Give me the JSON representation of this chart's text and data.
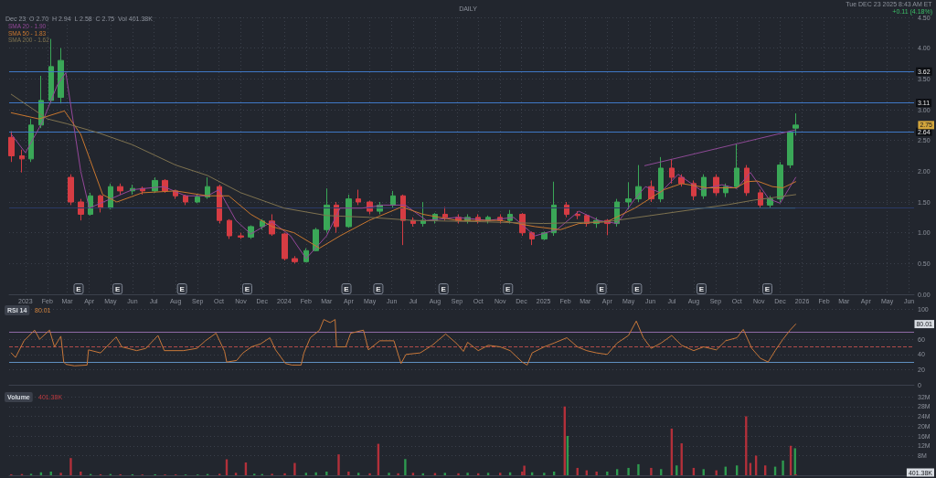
{
  "chart_data": [
    {
      "type": "candlestick",
      "title": "DAILY",
      "annotations": [
        "Dec 23  O 2.70  H 2.94  L 2.58  C 2.75  Vol 401.38K",
        "Tue DEC 23 2025 8:43 AM ET",
        "+0.11 (4.18%)",
        "2.75",
        {
          "text": "E",
          "x": "2023-03-17"
        },
        {
          "text": "E",
          "x": "2023-05-11"
        },
        {
          "text": "E",
          "x": "2023-08-10"
        },
        {
          "text": "E",
          "x": "2023-11-10"
        },
        {
          "text": "E",
          "x": "2024-03-29"
        },
        {
          "text": "E",
          "x": "2024-05-13"
        },
        {
          "text": "E",
          "x": "2024-08-13"
        },
        {
          "text": "E",
          "x": "2024-11-12"
        },
        {
          "text": "E",
          "x": "2025-03-24"
        },
        {
          "text": "E",
          "x": "2025-05-13"
        },
        {
          "text": "E",
          "x": "2025-08-12"
        },
        {
          "text": "E",
          "x": "2025-11-13"
        }
      ],
      "x": [
        "2022-12-12",
        "2022-12-27",
        "2023-01-09",
        "2023-01-23",
        "2023-02-06",
        "2023-02-20",
        "2023-03-06",
        "2023-03-20",
        "2023-04-03",
        "2023-04-17",
        "2023-05-01",
        "2023-05-15",
        "2023-06-01",
        "2023-06-15",
        "2023-07-03",
        "2023-07-17",
        "2023-08-01",
        "2023-08-15",
        "2023-09-01",
        "2023-09-15",
        "2023-10-02",
        "2023-10-16",
        "2023-11-01",
        "2023-11-15",
        "2023-12-01",
        "2023-12-15",
        "2024-01-02",
        "2024-01-16",
        "2024-02-01",
        "2024-02-15",
        "2024-03-01",
        "2024-03-15",
        "2024-04-01",
        "2024-04-15",
        "2024-05-01",
        "2024-05-15",
        "2024-06-03",
        "2024-06-17",
        "2024-07-01",
        "2024-07-15",
        "2024-08-01",
        "2024-08-15",
        "2024-09-03",
        "2024-09-16",
        "2024-10-01",
        "2024-10-15",
        "2024-11-01",
        "2024-11-15",
        "2024-12-02",
        "2024-12-16",
        "2025-01-02",
        "2025-01-16",
        "2025-02-03",
        "2025-02-18",
        "2025-03-03",
        "2025-03-17",
        "2025-04-01",
        "2025-04-15",
        "2025-05-01",
        "2025-05-15",
        "2025-06-02",
        "2025-06-16",
        "2025-07-01",
        "2025-07-15",
        "2025-08-01",
        "2025-08-15",
        "2025-09-02",
        "2025-09-15",
        "2025-10-01",
        "2025-10-15",
        "2025-11-03",
        "2025-11-17",
        "2025-12-01",
        "2025-12-15",
        "2025-12-23"
      ],
      "ohlc": [
        [
          2.55,
          2.65,
          2.15,
          2.25
        ],
        [
          2.25,
          2.35,
          1.98,
          2.2
        ],
        [
          2.2,
          2.85,
          2.15,
          2.75
        ],
        [
          2.75,
          3.55,
          2.7,
          3.15
        ],
        [
          3.15,
          4.15,
          3.1,
          3.7
        ],
        [
          3.2,
          4.0,
          3.1,
          3.8
        ],
        [
          1.9,
          1.95,
          1.45,
          1.5
        ],
        [
          1.5,
          1.55,
          1.2,
          1.3
        ],
        [
          1.3,
          1.65,
          1.28,
          1.6
        ],
        [
          1.6,
          1.62,
          1.33,
          1.4
        ],
        [
          1.4,
          1.8,
          1.38,
          1.75
        ],
        [
          1.75,
          1.8,
          1.62,
          1.68
        ],
        [
          1.68,
          1.78,
          1.62,
          1.72
        ],
        [
          1.72,
          1.75,
          1.62,
          1.68
        ],
        [
          1.68,
          1.9,
          1.65,
          1.85
        ],
        [
          1.85,
          1.87,
          1.65,
          1.68
        ],
        [
          1.68,
          1.7,
          1.55,
          1.6
        ],
        [
          1.6,
          1.62,
          1.45,
          1.5
        ],
        [
          1.5,
          1.62,
          1.48,
          1.58
        ],
        [
          1.58,
          1.9,
          1.55,
          1.75
        ],
        [
          1.75,
          1.78,
          1.15,
          1.2
        ],
        [
          1.2,
          1.22,
          0.9,
          0.95
        ],
        [
          0.95,
          1.0,
          0.9,
          0.93
        ],
        [
          0.93,
          1.12,
          0.9,
          1.1
        ],
        [
          1.1,
          1.22,
          1.05,
          1.19
        ],
        [
          1.19,
          1.3,
          0.95,
          0.98
        ],
        [
          0.98,
          1.0,
          0.55,
          0.58
        ],
        [
          0.58,
          0.62,
          0.5,
          0.53
        ],
        [
          0.53,
          0.75,
          0.52,
          0.71
        ],
        [
          0.71,
          1.08,
          0.7,
          1.05
        ],
        [
          1.05,
          1.72,
          1.0,
          1.45
        ],
        [
          1.45,
          1.5,
          1.0,
          1.1
        ],
        [
          1.1,
          1.62,
          1.08,
          1.55
        ],
        [
          1.55,
          1.7,
          1.45,
          1.5
        ],
        [
          1.5,
          1.52,
          1.3,
          1.35
        ],
        [
          1.35,
          1.5,
          1.3,
          1.45
        ],
        [
          1.45,
          1.68,
          1.4,
          1.6
        ],
        [
          1.6,
          1.62,
          0.8,
          1.2
        ],
        [
          1.2,
          1.25,
          1.1,
          1.15
        ],
        [
          1.15,
          1.5,
          1.1,
          1.2
        ],
        [
          1.2,
          1.32,
          1.15,
          1.3
        ],
        [
          1.3,
          1.42,
          1.2,
          1.25
        ],
        [
          1.25,
          1.3,
          1.15,
          1.2
        ],
        [
          1.2,
          1.3,
          1.15,
          1.25
        ],
        [
          1.25,
          1.3,
          1.15,
          1.2
        ],
        [
          1.2,
          1.28,
          1.15,
          1.25
        ],
        [
          1.25,
          1.3,
          1.15,
          1.2
        ],
        [
          1.2,
          1.37,
          1.15,
          1.3
        ],
        [
          1.3,
          1.32,
          0.95,
          1.0
        ],
        [
          1.0,
          1.02,
          0.8,
          0.9
        ],
        [
          0.9,
          1.02,
          0.88,
          1.0
        ],
        [
          1.0,
          1.83,
          0.95,
          1.45
        ],
        [
          1.45,
          1.5,
          1.25,
          1.3
        ],
        [
          1.3,
          1.35,
          1.22,
          1.28
        ],
        [
          1.28,
          1.3,
          1.1,
          1.15
        ],
        [
          1.15,
          1.25,
          1.08,
          1.2
        ],
        [
          1.2,
          1.22,
          0.96,
          1.15
        ],
        [
          1.15,
          1.55,
          1.1,
          1.5
        ],
        [
          1.5,
          1.82,
          1.38,
          1.55
        ],
        [
          1.55,
          2.1,
          1.5,
          1.75
        ],
        [
          1.75,
          1.85,
          1.5,
          1.55
        ],
        [
          1.55,
          2.23,
          1.5,
          2.05
        ],
        [
          2.05,
          2.2,
          1.8,
          1.9
        ],
        [
          1.9,
          1.95,
          1.75,
          1.8
        ],
        [
          1.8,
          1.85,
          1.53,
          1.6
        ],
        [
          1.6,
          1.95,
          1.55,
          1.9
        ],
        [
          1.9,
          1.95,
          1.6,
          1.65
        ],
        [
          1.65,
          1.8,
          1.58,
          1.75
        ],
        [
          1.75,
          2.45,
          1.72,
          2.05
        ],
        [
          2.05,
          2.1,
          1.6,
          1.65
        ],
        [
          1.65,
          1.7,
          1.4,
          1.45
        ],
        [
          1.45,
          1.6,
          1.4,
          1.55
        ],
        [
          1.55,
          2.15,
          1.5,
          2.1
        ],
        [
          2.1,
          2.66,
          2.05,
          2.64
        ],
        [
          2.7,
          2.94,
          2.58,
          2.75
        ]
      ],
      "colors": [
        "#d63c43",
        "#d63c43",
        "#3aa757",
        "#3aa757",
        "#3aa757",
        "#3aa757",
        "#d63c43",
        "#d63c43",
        "#3aa757",
        "#d63c43",
        "#3aa757",
        "#d63c43",
        "#3aa757",
        "#d63c43",
        "#3aa757",
        "#d63c43",
        "#d63c43",
        "#d63c43",
        "#3aa757",
        "#3aa757",
        "#d63c43",
        "#d63c43",
        "#d63c43",
        "#3aa757",
        "#3aa757",
        "#d63c43",
        "#d63c43",
        "#d63c43",
        "#3aa757",
        "#3aa757",
        "#3aa757",
        "#d63c43",
        "#3aa757",
        "#d63c43",
        "#d63c43",
        "#3aa757",
        "#3aa757",
        "#d63c43",
        "#d63c43",
        "#3aa757",
        "#3aa757",
        "#d63c43",
        "#d63c43",
        "#3aa757",
        "#d63c43",
        "#3aa757",
        "#d63c43",
        "#3aa757",
        "#d63c43",
        "#d63c43",
        "#3aa757",
        "#3aa757",
        "#d63c43",
        "#d63c43",
        "#d63c43",
        "#3aa757",
        "#d63c43",
        "#3aa757",
        "#3aa757",
        "#3aa757",
        "#d63c43",
        "#3aa757",
        "#d63c43",
        "#d63c43",
        "#d63c43",
        "#3aa757",
        "#d63c43",
        "#3aa757",
        "#3aa757",
        "#d63c43",
        "#d63c43",
        "#3aa757",
        "#3aa757",
        "#3aa757",
        "#3aa757"
      ],
      "series": [
        {
          "type": "line",
          "name": "SMA 20 - 1.90",
          "color": "#95489a",
          "x": [
            "2022-12-12",
            "2023-01-01",
            "2023-01-25",
            "2023-02-15",
            "2023-02-27",
            "2023-03-20",
            "2023-04-01",
            "2023-05-01",
            "2023-06-01",
            "2023-07-15",
            "2023-08-15",
            "2023-09-15",
            "2023-10-01",
            "2023-10-25",
            "2023-11-15",
            "2023-12-15",
            "2024-01-10",
            "2024-02-01",
            "2024-03-01",
            "2024-03-20",
            "2024-04-20",
            "2024-05-20",
            "2024-06-20",
            "2024-07-20",
            "2024-09-01",
            "2024-10-15",
            "2024-11-20",
            "2024-12-20",
            "2025-01-20",
            "2025-02-20",
            "2025-03-20",
            "2025-04-15",
            "2025-05-10",
            "2025-05-25",
            "2025-06-15",
            "2025-07-10",
            "2025-08-10",
            "2025-09-10",
            "2025-10-01",
            "2025-10-20",
            "2025-11-15",
            "2025-12-01",
            "2025-12-23"
          ],
          "values": [
            2.6,
            2.3,
            2.8,
            3.4,
            3.6,
            2.0,
            1.4,
            1.55,
            1.7,
            1.75,
            1.6,
            1.6,
            1.7,
            1.2,
            0.98,
            1.18,
            0.95,
            0.58,
            0.95,
            1.4,
            1.4,
            1.45,
            1.45,
            1.2,
            1.25,
            1.2,
            1.25,
            0.95,
            1.05,
            1.35,
            1.2,
            1.15,
            1.55,
            1.75,
            1.65,
            1.95,
            1.7,
            1.78,
            1.72,
            1.98,
            1.55,
            1.48,
            1.9
          ]
        },
        {
          "type": "line",
          "name": "SMA 50 - 1.83",
          "color": "#c9772f",
          "x": [
            "2022-12-12",
            "2023-01-20",
            "2023-02-25",
            "2023-03-20",
            "2023-04-02",
            "2023-04-20",
            "2023-05-10",
            "2023-06-15",
            "2023-08-01",
            "2023-09-15",
            "2023-10-15",
            "2023-11-15",
            "2023-12-15",
            "2024-01-15",
            "2024-02-20",
            "2024-03-20",
            "2024-04-30",
            "2024-06-15",
            "2024-07-15",
            "2024-09-01",
            "2024-11-01",
            "2024-12-20",
            "2025-01-25",
            "2025-02-20",
            "2025-04-01",
            "2025-05-10",
            "2025-06-20",
            "2025-07-15",
            "2025-08-20",
            "2025-09-30",
            "2025-10-15",
            "2025-10-30",
            "2025-11-20",
            "2025-12-05",
            "2025-12-23"
          ],
          "values": [
            2.95,
            2.85,
            2.98,
            2.6,
            2.19,
            1.62,
            1.5,
            1.65,
            1.68,
            1.6,
            1.6,
            1.3,
            1.1,
            1.0,
            0.75,
            0.95,
            1.2,
            1.42,
            1.3,
            1.2,
            1.2,
            1.1,
            1.05,
            1.15,
            1.18,
            1.4,
            1.7,
            1.8,
            1.73,
            1.73,
            1.83,
            1.84,
            1.75,
            1.73,
            1.83
          ]
        },
        {
          "type": "line",
          "name": "SMA 200 - 1.62",
          "color": "#7f7350",
          "x": [
            "2022-12-12",
            "2023-02-01",
            "2023-03-01",
            "2023-04-15",
            "2023-06-01",
            "2023-08-01",
            "2023-09-15",
            "2023-11-01",
            "2024-01-01",
            "2024-03-01",
            "2024-05-01",
            "2024-07-01",
            "2024-10-01",
            "2025-01-01",
            "2025-04-01",
            "2025-06-20",
            "2025-09-20",
            "2025-10-25",
            "2025-12-23"
          ],
          "values": [
            3.25,
            2.85,
            2.77,
            2.62,
            2.43,
            2.1,
            1.93,
            1.65,
            1.4,
            1.28,
            1.25,
            1.2,
            1.18,
            1.15,
            1.18,
            1.31,
            1.46,
            1.53,
            1.62
          ]
        },
        {
          "type": "line",
          "color": "#8e4a96",
          "x": [
            "2025-05-24",
            "2025-12-22"
          ],
          "values": [
            2.09,
            2.67
          ]
        },
        {
          "type": "line",
          "color": "#35597d",
          "x": [
            "2025-06-11",
            "2025-12-22"
          ],
          "values": [
            1.4,
            1.4
          ]
        }
      ],
      "ref_lines": [
        {
          "axis": "y",
          "value": 3.62,
          "label": "3.62",
          "color": "#3f78c6"
        },
        {
          "axis": "y",
          "value": 3.11,
          "label": "3.11",
          "color": "#3f78c6"
        },
        {
          "axis": "y",
          "value": 2.64,
          "label": "2.64",
          "color": "#3f78c6"
        },
        {
          "axis": "y",
          "value": 1.4,
          "color": "#2b3a66"
        }
      ],
      "xlim": [
        "2022-12-09",
        "2026-06-08"
      ],
      "xticks": [
        {
          "value": "2023-01-01",
          "label": "2023"
        },
        {
          "value": "2023-02-01",
          "label": "Feb"
        },
        {
          "value": "2023-03-01",
          "label": "Mar"
        },
        {
          "value": "2023-04-01",
          "label": "Apr"
        },
        {
          "value": "2023-05-01",
          "label": "May"
        },
        {
          "value": "2023-06-01",
          "label": "Jun"
        },
        {
          "value": "2023-07-01",
          "label": "Jul"
        },
        {
          "value": "2023-08-01",
          "label": "Aug"
        },
        {
          "value": "2023-09-01",
          "label": "Sep"
        },
        {
          "value": "2023-10-01",
          "label": "Oct"
        },
        {
          "value": "2023-11-01",
          "label": "Nov"
        },
        {
          "value": "2023-12-01",
          "label": "Dec"
        },
        {
          "value": "2024-01-01",
          "label": "2024"
        },
        {
          "value": "2024-02-01",
          "label": "Feb"
        },
        {
          "value": "2024-03-01",
          "label": "Mar"
        },
        {
          "value": "2024-04-01",
          "label": "Apr"
        },
        {
          "value": "2024-05-01",
          "label": "May"
        },
        {
          "value": "2024-06-01",
          "label": "Jun"
        },
        {
          "value": "2024-07-01",
          "label": "Jul"
        },
        {
          "value": "2024-08-01",
          "label": "Aug"
        },
        {
          "value": "2024-09-01",
          "label": "Sep"
        },
        {
          "value": "2024-10-01",
          "label": "Oct"
        },
        {
          "value": "2024-11-01",
          "label": "Nov"
        },
        {
          "value": "2024-12-01",
          "label": "Dec"
        },
        {
          "value": "2025-01-01",
          "label": "2025"
        },
        {
          "value": "2025-02-01",
          "label": "Feb"
        },
        {
          "value": "2025-03-01",
          "label": "Mar"
        },
        {
          "value": "2025-04-01",
          "label": "Apr"
        },
        {
          "value": "2025-05-01",
          "label": "May"
        },
        {
          "value": "2025-06-01",
          "label": "Jun"
        },
        {
          "value": "2025-07-01",
          "label": "Jul"
        },
        {
          "value": "2025-08-01",
          "label": "Aug"
        },
        {
          "value": "2025-09-01",
          "label": "Sep"
        },
        {
          "value": "2025-10-01",
          "label": "Oct"
        },
        {
          "value": "2025-11-01",
          "label": "Nov"
        },
        {
          "value": "2025-12-01",
          "label": "Dec"
        },
        {
          "value": "2026-01-01",
          "label": "2026"
        },
        {
          "value": "2026-02-01",
          "label": "Feb"
        },
        {
          "value": "2026-03-01",
          "label": "Mar"
        },
        {
          "value": "2026-04-01",
          "label": "Apr"
        },
        {
          "value": "2026-05-01",
          "label": "May"
        },
        {
          "value": "2026-06-01",
          "label": "Jun"
        }
      ],
      "ylim": [
        0,
        4.5
      ],
      "yticks": [
        {
          "value": 0,
          "label": "0.00"
        },
        {
          "value": 0.5,
          "label": "0.50"
        },
        {
          "value": 1,
          "label": "1.00"
        },
        {
          "value": 1.5,
          "label": "1.50"
        },
        {
          "value": 2,
          "label": "2.00"
        },
        {
          "value": 2.5,
          "label": "2.50"
        },
        {
          "value": 3,
          "label": "3.00"
        },
        {
          "value": 3.5,
          "label": "3.50"
        },
        {
          "value": 4,
          "label": "4.00"
        },
        {
          "value": 4.5,
          "label": "4.50"
        }
      ],
      "grid": true,
      "legend": "top left"
    },
    {
      "type": "line",
      "title": "RSI 14",
      "annotations": [
        "80.01",
        "80.01"
      ],
      "x": [
        "2022-12-12",
        "2022-12-18",
        "2022-12-30",
        "2023-01-14",
        "2023-01-21",
        "2023-02-04",
        "2023-02-11",
        "2023-02-20",
        "2023-02-24",
        "2023-02-27",
        "2023-03-11",
        "2023-03-29",
        "2023-03-31",
        "2023-04-17",
        "2023-05-09",
        "2023-05-17",
        "2023-06-07",
        "2023-06-20",
        "2023-07-07",
        "2023-07-16",
        "2023-08-12",
        "2023-08-31",
        "2023-09-12",
        "2023-09-27",
        "2023-10-09",
        "2023-10-12",
        "2023-10-26",
        "2023-11-04",
        "2023-11-16",
        "2023-11-29",
        "2023-12-12",
        "2023-12-20",
        "2024-01-03",
        "2024-01-12",
        "2024-01-25",
        "2024-01-29",
        "2024-02-07",
        "2024-02-20",
        "2024-02-26",
        "2024-03-06",
        "2024-03-13",
        "2024-03-15",
        "2024-03-28",
        "2024-04-04",
        "2024-04-22",
        "2024-04-29",
        "2024-05-15",
        "2024-06-04",
        "2024-06-14",
        "2024-06-21",
        "2024-07-11",
        "2024-07-28",
        "2024-08-16",
        "2024-09-01",
        "2024-09-10",
        "2024-09-16",
        "2024-10-01",
        "2024-10-15",
        "2024-11-01",
        "2024-11-15",
        "2024-12-02",
        "2024-12-09",
        "2024-12-16",
        "2025-01-02",
        "2025-01-16",
        "2025-02-03",
        "2025-02-18",
        "2025-03-03",
        "2025-03-17",
        "2025-04-01",
        "2025-04-15",
        "2025-05-01",
        "2025-05-12",
        "2025-05-22",
        "2025-06-02",
        "2025-06-16",
        "2025-07-01",
        "2025-07-15",
        "2025-08-01",
        "2025-08-15",
        "2025-09-02",
        "2025-09-15",
        "2025-10-01",
        "2025-10-10",
        "2025-10-22",
        "2025-11-03",
        "2025-11-14",
        "2025-11-24",
        "2025-12-05",
        "2025-12-15",
        "2025-12-23"
      ],
      "values": [
        42,
        36,
        58,
        72,
        60,
        72,
        50,
        64,
        30,
        27,
        25,
        26,
        46,
        42,
        63,
        50,
        45,
        48,
        65,
        45,
        45,
        48,
        58,
        68,
        44,
        30,
        32,
        42,
        50,
        54,
        62,
        46,
        28,
        26,
        26,
        42,
        62,
        72,
        86,
        82,
        86,
        50,
        50,
        68,
        72,
        46,
        58,
        58,
        28,
        40,
        42,
        52,
        67,
        54,
        44,
        56,
        45,
        52,
        50,
        45,
        30,
        26,
        42,
        50,
        55,
        62,
        50,
        45,
        42,
        40,
        55,
        65,
        84,
        62,
        48,
        55,
        65,
        52,
        45,
        50,
        46,
        58,
        62,
        73,
        48,
        35,
        30,
        45,
        60,
        72,
        80.01
      ],
      "color": "#c8783a",
      "ref_lines": [
        {
          "axis": "y",
          "value": 70,
          "color": "#8e6aa6"
        },
        {
          "axis": "y",
          "value": 50,
          "color": "#b04a4a",
          "line_style": "dashed"
        },
        {
          "axis": "y",
          "value": 30,
          "color": "#5f8fc0"
        }
      ],
      "xlim": [
        "2022-12-09",
        "2026-06-08"
      ],
      "ylim": [
        0,
        100
      ],
      "yticks": [
        0,
        20,
        40,
        60,
        100
      ],
      "grid": "y",
      "tick_labels": "y"
    },
    {
      "type": "bar",
      "title": "Volume",
      "annotations": [
        "401.38K",
        "401.38K"
      ],
      "x": [
        "2022-12-12",
        "2022-12-27",
        "2023-01-09",
        "2023-01-23",
        "2023-02-06",
        "2023-02-20",
        "2023-03-06",
        "2023-03-20",
        "2023-04-03",
        "2023-04-17",
        "2023-05-01",
        "2023-05-15",
        "2023-06-01",
        "2023-06-15",
        "2023-07-03",
        "2023-07-17",
        "2023-08-01",
        "2023-08-15",
        "2023-09-01",
        "2023-09-15",
        "2023-10-02",
        "2023-10-12",
        "2023-10-25",
        "2023-11-08",
        "2023-11-20",
        "2023-12-01",
        "2023-12-15",
        "2024-01-02",
        "2024-01-16",
        "2024-02-01",
        "2024-02-15",
        "2024-03-01",
        "2024-03-18",
        "2024-04-01",
        "2024-04-15",
        "2024-05-01",
        "2024-05-13",
        "2024-05-28",
        "2024-06-10",
        "2024-06-20",
        "2024-07-01",
        "2024-07-15",
        "2024-08-01",
        "2024-08-15",
        "2024-09-03",
        "2024-09-16",
        "2024-10-01",
        "2024-10-15",
        "2024-11-01",
        "2024-11-15",
        "2024-12-02",
        "2024-12-05",
        "2024-12-16",
        "2025-01-02",
        "2025-01-16",
        "2025-01-31",
        "2025-02-04",
        "2025-02-18",
        "2025-03-03",
        "2025-03-17",
        "2025-04-01",
        "2025-04-15",
        "2025-05-01",
        "2025-05-15",
        "2025-06-02",
        "2025-06-16",
        "2025-07-01",
        "2025-07-08",
        "2025-07-15",
        "2025-08-01",
        "2025-08-15",
        "2025-09-02",
        "2025-09-15",
        "2025-10-01",
        "2025-10-14",
        "2025-10-20",
        "2025-10-28",
        "2025-11-10",
        "2025-11-24",
        "2025-12-05",
        "2025-12-16",
        "2025-12-22",
        "2025-12-23"
      ],
      "values": [
        0.4,
        0.5,
        0.6,
        1.2,
        1.5,
        1.0,
        7.0,
        1.5,
        0.5,
        0.4,
        0.5,
        0.4,
        0.4,
        0.3,
        0.4,
        0.3,
        0.3,
        0.3,
        0.3,
        0.5,
        0.6,
        6.5,
        1.0,
        5.2,
        0.6,
        0.5,
        0.6,
        0.8,
        5.0,
        1.0,
        1.2,
        1.5,
        8.5,
        1.5,
        1.0,
        0.8,
        12.8,
        1.0,
        0.8,
        6.6,
        1.0,
        0.8,
        0.9,
        1.0,
        0.8,
        1.0,
        0.8,
        1.0,
        1.0,
        1.2,
        1.5,
        3.9,
        1.2,
        1.0,
        1.5,
        28,
        16,
        3.0,
        2.0,
        1.5,
        1.5,
        2.5,
        3.0,
        4.5,
        3.0,
        2.5,
        19,
        4.0,
        13,
        3.0,
        2.5,
        2.0,
        3.5,
        4.0,
        24,
        5.0,
        8.0,
        4.0,
        3.5,
        6.0,
        12,
        11,
        0.40138
      ],
      "colors": [
        "#b3303a",
        "#b3303a",
        "#2e9a4f",
        "#2e9a4f",
        "#2e9a4f",
        "#b3303a",
        "#b3303a",
        "#b3303a",
        "#2e9a4f",
        "#b3303a",
        "#2e9a4f",
        "#b3303a",
        "#2e9a4f",
        "#b3303a",
        "#2e9a4f",
        "#b3303a",
        "#b3303a",
        "#2e9a4f",
        "#2e9a4f",
        "#2e9a4f",
        "#b3303a",
        "#b3303a",
        "#b3303a",
        "#b3303a",
        "#2e9a4f",
        "#2e9a4f",
        "#b3303a",
        "#b3303a",
        "#b3303a",
        "#2e9a4f",
        "#2e9a4f",
        "#2e9a4f",
        "#b3303a",
        "#b3303a",
        "#2e9a4f",
        "#b3303a",
        "#b3303a",
        "#2e9a4f",
        "#b3303a",
        "#2e9a4f",
        "#b3303a",
        "#2e9a4f",
        "#b3303a",
        "#2e9a4f",
        "#b3303a",
        "#2e9a4f",
        "#b3303a",
        "#2e9a4f",
        "#b3303a",
        "#2e9a4f",
        "#b3303a",
        "#b3303a",
        "#2e9a4f",
        "#2e9a4f",
        "#2e9a4f",
        "#b3303a",
        "#2e9a4f",
        "#b3303a",
        "#b3303a",
        "#b3303a",
        "#2e9a4f",
        "#2e9a4f",
        "#2e9a4f",
        "#2e9a4f",
        "#b3303a",
        "#2e9a4f",
        "#b3303a",
        "#2e9a4f",
        "#b3303a",
        "#b3303a",
        "#2e9a4f",
        "#b3303a",
        "#2e9a4f",
        "#2e9a4f",
        "#b3303a",
        "#b3303a",
        "#b3303a",
        "#b3303a",
        "#2e9a4f",
        "#2e9a4f",
        "#b3303a",
        "#2e9a4f",
        "#b3303a"
      ],
      "xlim": [
        "2022-12-09",
        "2026-06-08"
      ],
      "ylim": [
        0,
        32
      ],
      "yticks": [
        {
          "value": 8,
          "label": "8M"
        },
        {
          "value": 12,
          "label": "12M"
        },
        {
          "value": 16,
          "label": "16M"
        },
        {
          "value": 20,
          "label": "20M"
        },
        {
          "value": 24,
          "label": "24M"
        },
        {
          "value": 28,
          "label": "28M"
        },
        {
          "value": 32,
          "label": "32M"
        }
      ],
      "grid": "y",
      "tick_labels": "y"
    }
  ]
}
